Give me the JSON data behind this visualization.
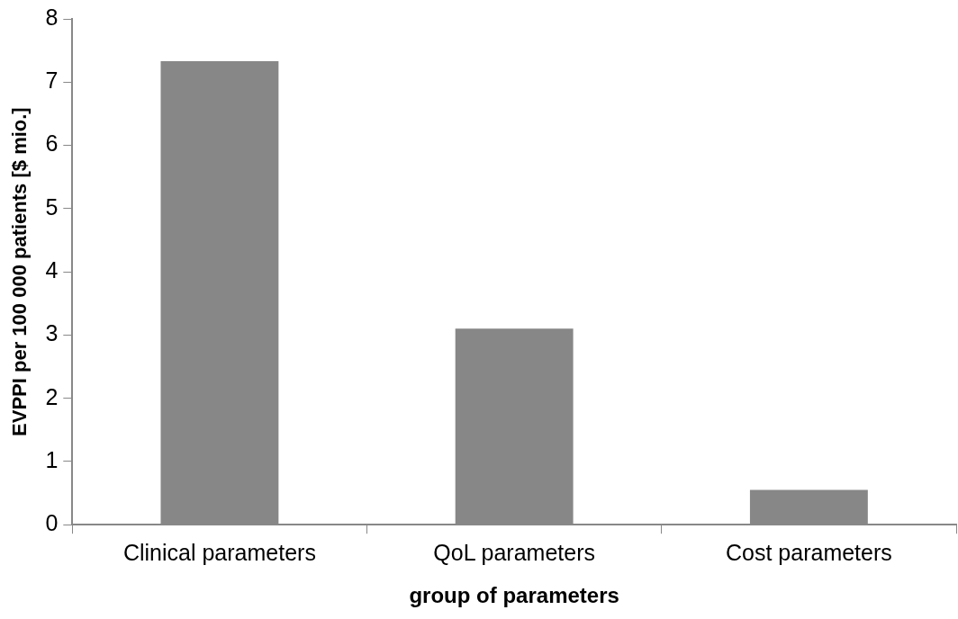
{
  "chart_data": {
    "type": "bar",
    "xlabel": "group of parameters",
    "ylabel": "EVPPI per 100 000 patients [$ mio.]",
    "categories": [
      "Clinical parameters",
      "QoL parameters",
      "Cost parameters"
    ],
    "values": [
      7.33,
      3.1,
      0.55
    ],
    "color": "#878787",
    "ylim": [
      0,
      8
    ],
    "yticks": [
      0,
      1,
      2,
      3,
      4,
      5,
      6,
      7,
      8
    ],
    "grid": false,
    "legend": false
  }
}
